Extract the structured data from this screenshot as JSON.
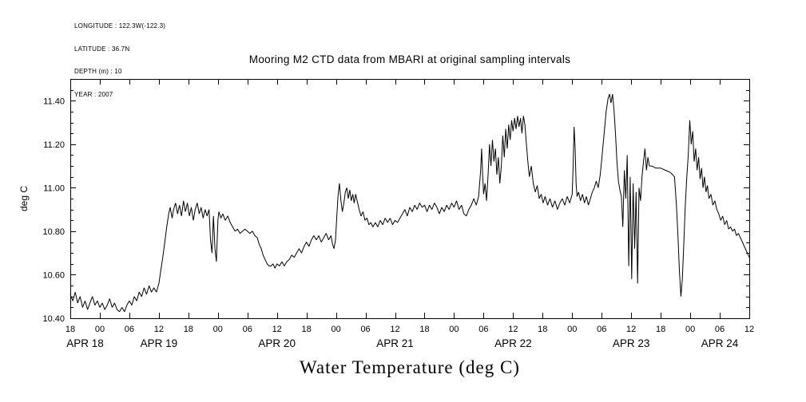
{
  "metadata": {
    "longitude": "LONGITUDE : 122.3W(-122.3)",
    "latitude": "LATITUDE : 36.7N",
    "depth": "DEPTH (m) : 10",
    "year": "YEAR : 2007"
  },
  "chart_data": {
    "type": "line",
    "title": "Mooring M2 CTD data from MBARI at original sampling intervals",
    "xlabel": "Water Temperature (deg C)",
    "ylabel": "deg C",
    "grid": false,
    "line_color": "#000000",
    "x_unit": "hours since APR 18 2007 18:00 (from visible axis labels)",
    "x_range": [
      0,
      138
    ],
    "y_range": [
      10.4,
      11.5
    ],
    "x_ticks": [
      {
        "t": 0,
        "label": "18"
      },
      {
        "t": 6,
        "label": "00"
      },
      {
        "t": 12,
        "label": "06"
      },
      {
        "t": 18,
        "label": "12"
      },
      {
        "t": 24,
        "label": "18"
      },
      {
        "t": 30,
        "label": "00"
      },
      {
        "t": 36,
        "label": "06"
      },
      {
        "t": 42,
        "label": "12"
      },
      {
        "t": 48,
        "label": "18"
      },
      {
        "t": 54,
        "label": "00"
      },
      {
        "t": 60,
        "label": "06"
      },
      {
        "t": 66,
        "label": "12"
      },
      {
        "t": 72,
        "label": "18"
      },
      {
        "t": 78,
        "label": "00"
      },
      {
        "t": 84,
        "label": "06"
      },
      {
        "t": 90,
        "label": "12"
      },
      {
        "t": 96,
        "label": "18"
      },
      {
        "t": 102,
        "label": "00"
      },
      {
        "t": 108,
        "label": "06"
      },
      {
        "t": 114,
        "label": "12"
      },
      {
        "t": 120,
        "label": "18"
      },
      {
        "t": 126,
        "label": "00"
      },
      {
        "t": 132,
        "label": "06"
      },
      {
        "t": 138,
        "label": "12"
      }
    ],
    "x_day_labels": [
      {
        "t": 3,
        "label": "APR 18"
      },
      {
        "t": 18,
        "label": "APR 19"
      },
      {
        "t": 42,
        "label": "APR 20"
      },
      {
        "t": 66,
        "label": "APR 21"
      },
      {
        "t": 90,
        "label": "APR 22"
      },
      {
        "t": 114,
        "label": "APR 23"
      },
      {
        "t": 132,
        "label": "APR 24"
      }
    ],
    "y_ticks_major": [
      {
        "value": 10.4,
        "label": "10.40"
      },
      {
        "value": 10.6,
        "label": "10.60"
      },
      {
        "value": 10.8,
        "label": "10.80"
      },
      {
        "value": 11.0,
        "label": "11.00"
      },
      {
        "value": 11.2,
        "label": "11.20"
      },
      {
        "value": 11.4,
        "label": "11.40"
      }
    ],
    "y_ticks_minor": [
      10.45,
      10.5,
      10.55,
      10.65,
      10.7,
      10.75,
      10.85,
      10.9,
      10.95,
      11.05,
      11.1,
      11.15,
      11.25,
      11.3,
      11.35,
      11.45
    ],
    "series": [
      [
        0,
        10.51
      ],
      [
        0.5,
        10.48
      ],
      [
        1,
        10.52
      ],
      [
        1.5,
        10.47
      ],
      [
        2,
        10.5
      ],
      [
        2.5,
        10.45
      ],
      [
        3,
        10.48
      ],
      [
        3.5,
        10.44
      ],
      [
        4,
        10.47
      ],
      [
        4.5,
        10.5
      ],
      [
        5,
        10.46
      ],
      [
        5.5,
        10.48
      ],
      [
        6,
        10.45
      ],
      [
        6.5,
        10.47
      ],
      [
        7,
        10.44
      ],
      [
        7.5,
        10.46
      ],
      [
        8,
        10.49
      ],
      [
        8.5,
        10.45
      ],
      [
        9,
        10.47
      ],
      [
        9.5,
        10.44
      ],
      [
        10,
        10.43
      ],
      [
        10.5,
        10.45
      ],
      [
        11,
        10.43
      ],
      [
        11.5,
        10.46
      ],
      [
        12,
        10.48
      ],
      [
        12.5,
        10.46
      ],
      [
        13,
        10.5
      ],
      [
        13.5,
        10.48
      ],
      [
        14,
        10.52
      ],
      [
        14.5,
        10.5
      ],
      [
        15,
        10.54
      ],
      [
        15.5,
        10.51
      ],
      [
        16,
        10.55
      ],
      [
        16.5,
        10.52
      ],
      [
        17,
        10.54
      ],
      [
        17.5,
        10.52
      ],
      [
        18,
        10.56
      ],
      [
        18.4,
        10.62
      ],
      [
        18.8,
        10.68
      ],
      [
        19.2,
        10.75
      ],
      [
        19.6,
        10.82
      ],
      [
        20,
        10.88
      ],
      [
        20.3,
        10.91
      ],
      [
        20.7,
        10.86
      ],
      [
        21,
        10.9
      ],
      [
        21.4,
        10.93
      ],
      [
        21.8,
        10.88
      ],
      [
        22.2,
        10.92
      ],
      [
        22.6,
        10.87
      ],
      [
        23,
        10.94
      ],
      [
        23.4,
        10.89
      ],
      [
        23.8,
        10.93
      ],
      [
        24.2,
        10.87
      ],
      [
        24.6,
        10.91
      ],
      [
        25,
        10.85
      ],
      [
        25.4,
        10.9
      ],
      [
        25.8,
        10.93
      ],
      [
        26.2,
        10.88
      ],
      [
        26.6,
        10.91
      ],
      [
        27,
        10.86
      ],
      [
        27.4,
        10.9
      ],
      [
        27.8,
        10.87
      ],
      [
        28.2,
        10.9
      ],
      [
        28.5,
        10.76
      ],
      [
        28.8,
        10.7
      ],
      [
        29.1,
        10.87
      ],
      [
        29.4,
        10.72
      ],
      [
        29.7,
        10.66
      ],
      [
        30,
        10.85
      ],
      [
        30.2,
        10.89
      ],
      [
        30.6,
        10.86
      ],
      [
        31,
        10.88
      ],
      [
        31.5,
        10.85
      ],
      [
        32,
        10.87
      ],
      [
        32.5,
        10.84
      ],
      [
        33,
        10.82
      ],
      [
        33.5,
        10.8
      ],
      [
        34,
        10.81
      ],
      [
        34.5,
        10.79
      ],
      [
        35,
        10.8
      ],
      [
        35.5,
        10.81
      ],
      [
        36,
        10.8
      ],
      [
        36.5,
        10.79
      ],
      [
        37,
        10.8
      ],
      [
        37.5,
        10.78
      ],
      [
        38,
        10.77
      ],
      [
        38.4,
        10.74
      ],
      [
        38.8,
        10.72
      ],
      [
        39.2,
        10.69
      ],
      [
        39.6,
        10.67
      ],
      [
        40,
        10.65
      ],
      [
        40.4,
        10.64
      ],
      [
        40.8,
        10.64
      ],
      [
        41.2,
        10.65
      ],
      [
        41.6,
        10.63
      ],
      [
        42,
        10.65
      ],
      [
        42.5,
        10.64
      ],
      [
        43,
        10.66
      ],
      [
        43.5,
        10.64
      ],
      [
        44,
        10.66
      ],
      [
        44.5,
        10.67
      ],
      [
        45,
        10.69
      ],
      [
        45.5,
        10.68
      ],
      [
        46,
        10.7
      ],
      [
        46.5,
        10.72
      ],
      [
        47,
        10.7
      ],
      [
        47.5,
        10.73
      ],
      [
        48,
        10.75
      ],
      [
        48.5,
        10.73
      ],
      [
        49,
        10.76
      ],
      [
        49.5,
        10.78
      ],
      [
        50,
        10.76
      ],
      [
        50.5,
        10.78
      ],
      [
        51,
        10.75
      ],
      [
        51.5,
        10.77
      ],
      [
        52,
        10.79
      ],
      [
        52.5,
        10.76
      ],
      [
        53,
        10.78
      ],
      [
        53.3,
        10.74
      ],
      [
        53.6,
        10.72
      ],
      [
        53.9,
        10.76
      ],
      [
        54.1,
        10.84
      ],
      [
        54.4,
        10.96
      ],
      [
        54.7,
        11.02
      ],
      [
        55,
        10.94
      ],
      [
        55.3,
        10.89
      ],
      [
        55.6,
        10.93
      ],
      [
        55.9,
        10.98
      ],
      [
        56.2,
        11.0
      ],
      [
        56.5,
        10.95
      ],
      [
        56.8,
        10.99
      ],
      [
        57.1,
        10.94
      ],
      [
        57.4,
        10.97
      ],
      [
        57.7,
        10.93
      ],
      [
        58,
        10.97
      ],
      [
        58.3,
        10.94
      ],
      [
        58.7,
        10.9
      ],
      [
        59.1,
        10.87
      ],
      [
        59.5,
        10.89
      ],
      [
        59.9,
        10.85
      ],
      [
        60.3,
        10.86
      ],
      [
        60.7,
        10.83
      ],
      [
        61.1,
        10.84
      ],
      [
        61.5,
        10.82
      ],
      [
        62,
        10.84
      ],
      [
        62.5,
        10.82
      ],
      [
        63,
        10.85
      ],
      [
        63.5,
        10.83
      ],
      [
        64,
        10.86
      ],
      [
        64.5,
        10.84
      ],
      [
        65,
        10.86
      ],
      [
        65.5,
        10.83
      ],
      [
        66,
        10.85
      ],
      [
        66.5,
        10.84
      ],
      [
        67,
        10.86
      ],
      [
        67.5,
        10.88
      ],
      [
        68,
        10.9
      ],
      [
        68.5,
        10.87
      ],
      [
        69,
        10.91
      ],
      [
        69.5,
        10.89
      ],
      [
        70,
        10.92
      ],
      [
        70.5,
        10.9
      ],
      [
        71,
        10.93
      ],
      [
        71.5,
        10.91
      ],
      [
        72,
        10.92
      ],
      [
        72.5,
        10.89
      ],
      [
        73,
        10.92
      ],
      [
        73.5,
        10.9
      ],
      [
        74,
        10.93
      ],
      [
        74.5,
        10.91
      ],
      [
        75,
        10.88
      ],
      [
        75.5,
        10.91
      ],
      [
        76,
        10.89
      ],
      [
        76.5,
        10.92
      ],
      [
        77,
        10.9
      ],
      [
        77.5,
        10.93
      ],
      [
        78,
        10.91
      ],
      [
        78.5,
        10.94
      ],
      [
        79,
        10.9
      ],
      [
        79.5,
        10.92
      ],
      [
        80,
        10.88
      ],
      [
        80.5,
        10.87
      ],
      [
        81,
        10.9
      ],
      [
        81.5,
        10.92
      ],
      [
        82,
        10.95
      ],
      [
        82.5,
        10.92
      ],
      [
        83,
        10.96
      ],
      [
        83.4,
        11.08
      ],
      [
        83.6,
        11.18
      ],
      [
        83.8,
        11.06
      ],
      [
        84,
        10.97
      ],
      [
        84.3,
        11.02
      ],
      [
        84.6,
        10.94
      ],
      [
        84.9,
        11.05
      ],
      [
        85.2,
        11.2
      ],
      [
        85.5,
        11.1
      ],
      [
        85.8,
        11.22
      ],
      [
        86.1,
        11.12
      ],
      [
        86.4,
        11.18
      ],
      [
        86.7,
        11.06
      ],
      [
        87,
        11.14
      ],
      [
        87.3,
        11.02
      ],
      [
        87.6,
        11.1
      ],
      [
        87.9,
        11.24
      ],
      [
        88.2,
        11.14
      ],
      [
        88.5,
        11.27
      ],
      [
        88.8,
        11.18
      ],
      [
        89.1,
        11.29
      ],
      [
        89.4,
        11.22
      ],
      [
        89.7,
        11.31
      ],
      [
        90,
        11.26
      ],
      [
        90.3,
        11.32
      ],
      [
        90.6,
        11.27
      ],
      [
        90.9,
        11.33
      ],
      [
        91.2,
        11.28
      ],
      [
        91.5,
        11.32
      ],
      [
        91.8,
        11.25
      ],
      [
        92.1,
        11.33
      ],
      [
        92.4,
        11.29
      ],
      [
        92.7,
        11.2
      ],
      [
        93,
        11.12
      ],
      [
        93.3,
        11.05
      ],
      [
        93.7,
        11.1
      ],
      [
        94.1,
        11.02
      ],
      [
        94.5,
        10.98
      ],
      [
        94.9,
        11.01
      ],
      [
        95.3,
        10.95
      ],
      [
        95.7,
        10.97
      ],
      [
        96.1,
        10.93
      ],
      [
        96.5,
        10.96
      ],
      [
        97,
        10.92
      ],
      [
        97.5,
        10.95
      ],
      [
        98,
        10.91
      ],
      [
        98.5,
        10.94
      ],
      [
        99,
        10.9
      ],
      [
        99.5,
        10.93
      ],
      [
        100,
        10.95
      ],
      [
        100.5,
        10.92
      ],
      [
        101,
        10.96
      ],
      [
        101.5,
        10.93
      ],
      [
        102,
        10.97
      ],
      [
        102.2,
        11.1
      ],
      [
        102.4,
        11.28
      ],
      [
        102.6,
        11.18
      ],
      [
        102.8,
        11.02
      ],
      [
        103,
        10.96
      ],
      [
        103.3,
        10.98
      ],
      [
        103.7,
        10.94
      ],
      [
        104.1,
        10.97
      ],
      [
        104.5,
        10.93
      ],
      [
        104.9,
        10.96
      ],
      [
        105.3,
        10.92
      ],
      [
        105.7,
        10.95
      ],
      [
        106.1,
        10.98
      ],
      [
        106.5,
        11.0
      ],
      [
        106.9,
        11.03
      ],
      [
        107.3,
        11.0
      ],
      [
        107.7,
        11.06
      ],
      [
        108.1,
        11.15
      ],
      [
        108.5,
        11.25
      ],
      [
        108.9,
        11.35
      ],
      [
        109.3,
        11.41
      ],
      [
        109.6,
        11.43
      ],
      [
        109.9,
        11.39
      ],
      [
        110.2,
        11.43
      ],
      [
        110.5,
        11.36
      ],
      [
        110.8,
        11.25
      ],
      [
        111.1,
        11.12
      ],
      [
        111.4,
        11.03
      ],
      [
        111.7,
        10.99
      ],
      [
        112,
        10.96
      ],
      [
        112.3,
        10.82
      ],
      [
        112.6,
        11.08
      ],
      [
        112.9,
        10.95
      ],
      [
        113.2,
        11.15
      ],
      [
        113.5,
        10.64
      ],
      [
        113.8,
        11.05
      ],
      [
        114.1,
        10.58
      ],
      [
        114.4,
        11.02
      ],
      [
        114.7,
        10.72
      ],
      [
        115,
        10.98
      ],
      [
        115.3,
        10.56
      ],
      [
        115.6,
        11.0
      ],
      [
        115.9,
        10.94
      ],
      [
        116.2,
        11.05
      ],
      [
        116.5,
        11.12
      ],
      [
        116.8,
        11.18
      ],
      [
        117.1,
        11.08
      ],
      [
        117.4,
        11.14
      ],
      [
        117.7,
        11.1
      ],
      [
        118.2,
        11.1
      ],
      [
        119,
        11.09
      ],
      [
        120,
        11.09
      ],
      [
        121,
        11.08
      ],
      [
        122,
        11.07
      ],
      [
        122.8,
        11.05
      ],
      [
        123.2,
        10.92
      ],
      [
        123.5,
        10.78
      ],
      [
        123.8,
        10.62
      ],
      [
        124.1,
        10.5
      ],
      [
        124.4,
        10.58
      ],
      [
        124.7,
        10.75
      ],
      [
        125,
        10.92
      ],
      [
        125.3,
        11.05
      ],
      [
        125.6,
        11.15
      ],
      [
        125.9,
        11.31
      ],
      [
        126.2,
        11.2
      ],
      [
        126.5,
        11.26
      ],
      [
        126.8,
        11.12
      ],
      [
        127.1,
        11.18
      ],
      [
        127.4,
        11.08
      ],
      [
        127.7,
        11.14
      ],
      [
        128,
        11.04
      ],
      [
        128.3,
        11.09
      ],
      [
        128.6,
        11.0
      ],
      [
        128.9,
        11.05
      ],
      [
        129.2,
        10.98
      ],
      [
        129.5,
        11.01
      ],
      [
        129.8,
        10.95
      ],
      [
        130.2,
        10.97
      ],
      [
        130.6,
        10.92
      ],
      [
        131,
        10.94
      ],
      [
        131.4,
        10.9
      ],
      [
        131.8,
        10.88
      ],
      [
        132.2,
        10.85
      ],
      [
        132.6,
        10.87
      ],
      [
        133,
        10.83
      ],
      [
        133.4,
        10.85
      ],
      [
        133.8,
        10.81
      ],
      [
        134.2,
        10.82
      ],
      [
        134.6,
        10.8
      ],
      [
        135,
        10.81
      ],
      [
        135.4,
        10.78
      ],
      [
        135.8,
        10.79
      ],
      [
        136.2,
        10.77
      ],
      [
        136.6,
        10.75
      ],
      [
        137,
        10.73
      ],
      [
        137.4,
        10.71
      ],
      [
        137.8,
        10.69
      ],
      [
        138,
        10.68
      ]
    ]
  }
}
